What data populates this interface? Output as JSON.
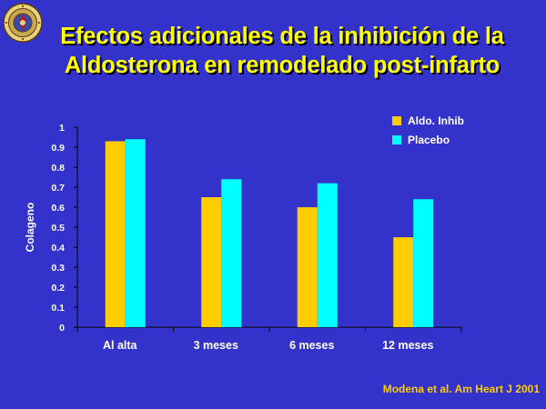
{
  "title_lines": [
    "Efectos adicionales de la inhibición de la",
    "Aldosterona en remodelado post-infarto"
  ],
  "citation": "Modena et al. Am Heart J 2001",
  "colors": {
    "background": "#3333cc",
    "title": "#ffff00",
    "citation": "#ffcc00",
    "series_1": "#ffcc00",
    "series_2": "#00ffff",
    "text": "#ffffff"
  },
  "logo_icon": "university-seal-icon",
  "chart_data": {
    "type": "bar",
    "ylabel": "Colageno",
    "xlabel": "",
    "ylim": [
      0,
      1
    ],
    "yticks": [
      "0",
      "0.1",
      "0.2",
      "0.3",
      "0.4",
      "0.5",
      "0.6",
      "0.7",
      "0.8",
      "0.9",
      "1"
    ],
    "categories": [
      "Al alta",
      "3 meses",
      "6 meses",
      "12 meses"
    ],
    "series": [
      {
        "name": "Aldo. Inhib",
        "color": "#ffcc00",
        "values": [
          0.93,
          0.65,
          0.6,
          0.45
        ]
      },
      {
        "name": "Placebo",
        "color": "#00ffff",
        "values": [
          0.94,
          0.74,
          0.72,
          0.64
        ]
      }
    ],
    "legend_position": "top-right",
    "grid": false
  }
}
